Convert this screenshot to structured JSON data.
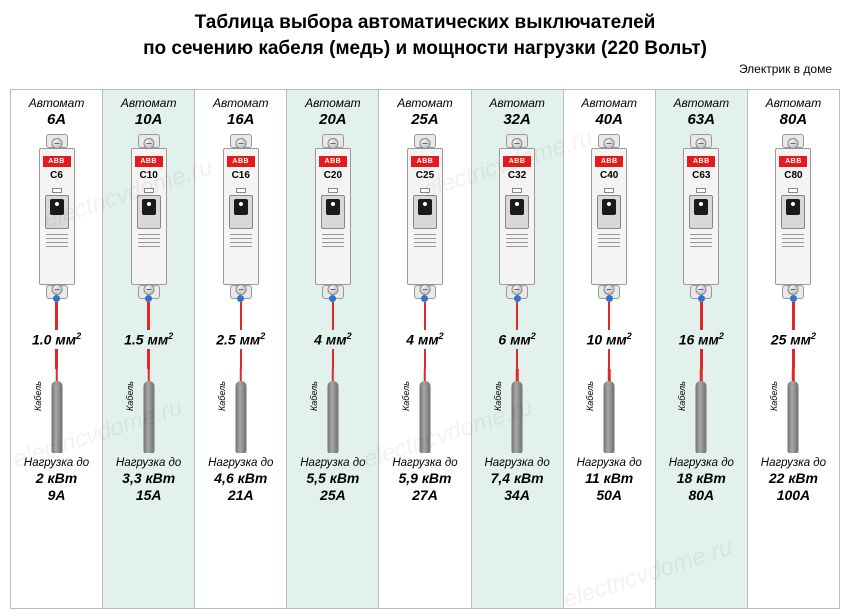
{
  "title_line1": "Таблица выбора автоматических выключателей",
  "title_line2": "по сечению кабеля (медь) и мощности нагрузки (220 Вольт)",
  "brand_small": "Электрик в доме",
  "watermark_text": "electricvdome.ru",
  "breaker_brand": "ABB",
  "labels": {
    "avtomat": "Автомат",
    "kabel": "Кабель",
    "nagruzka": "Нагрузка до"
  },
  "columns": [
    {
      "amps": "6А",
      "code": "C6",
      "section": "1.0 мм",
      "kw": "2 кВт",
      "ia": "9А",
      "alt": false
    },
    {
      "amps": "10А",
      "code": "C10",
      "section": "1.5 мм",
      "kw": "3,3 кВт",
      "ia": "15А",
      "alt": true
    },
    {
      "amps": "16А",
      "code": "C16",
      "section": "2.5 мм",
      "kw": "4,6 кВт",
      "ia": "21А",
      "alt": false
    },
    {
      "amps": "20А",
      "code": "C20",
      "section": "4 мм",
      "kw": "5,5 кВт",
      "ia": "25А",
      "alt": true
    },
    {
      "amps": "25А",
      "code": "C25",
      "section": "4 мм",
      "kw": "5,9 кВт",
      "ia": "27А",
      "alt": false
    },
    {
      "amps": "32А",
      "code": "C32",
      "section": "6 мм",
      "kw": "7,4 кВт",
      "ia": "34А",
      "alt": true
    },
    {
      "amps": "40А",
      "code": "C40",
      "section": "10 мм",
      "kw": "11 кВт",
      "ia": "50А",
      "alt": false
    },
    {
      "amps": "63А",
      "code": "C63",
      "section": "16 мм",
      "kw": "18 кВт",
      "ia": "80А",
      "alt": true
    },
    {
      "amps": "80А",
      "code": "C80",
      "section": "25 мм",
      "kw": "22 кВт",
      "ia": "100А",
      "alt": false
    }
  ],
  "style": {
    "bg_alt": "#e2f1eb",
    "border": "#bbbbbb",
    "red": "#e02828",
    "abb_red": "#e41b1b",
    "dot_blue": "#3173c9",
    "cable_gray": "#808080",
    "text": "#000000"
  }
}
